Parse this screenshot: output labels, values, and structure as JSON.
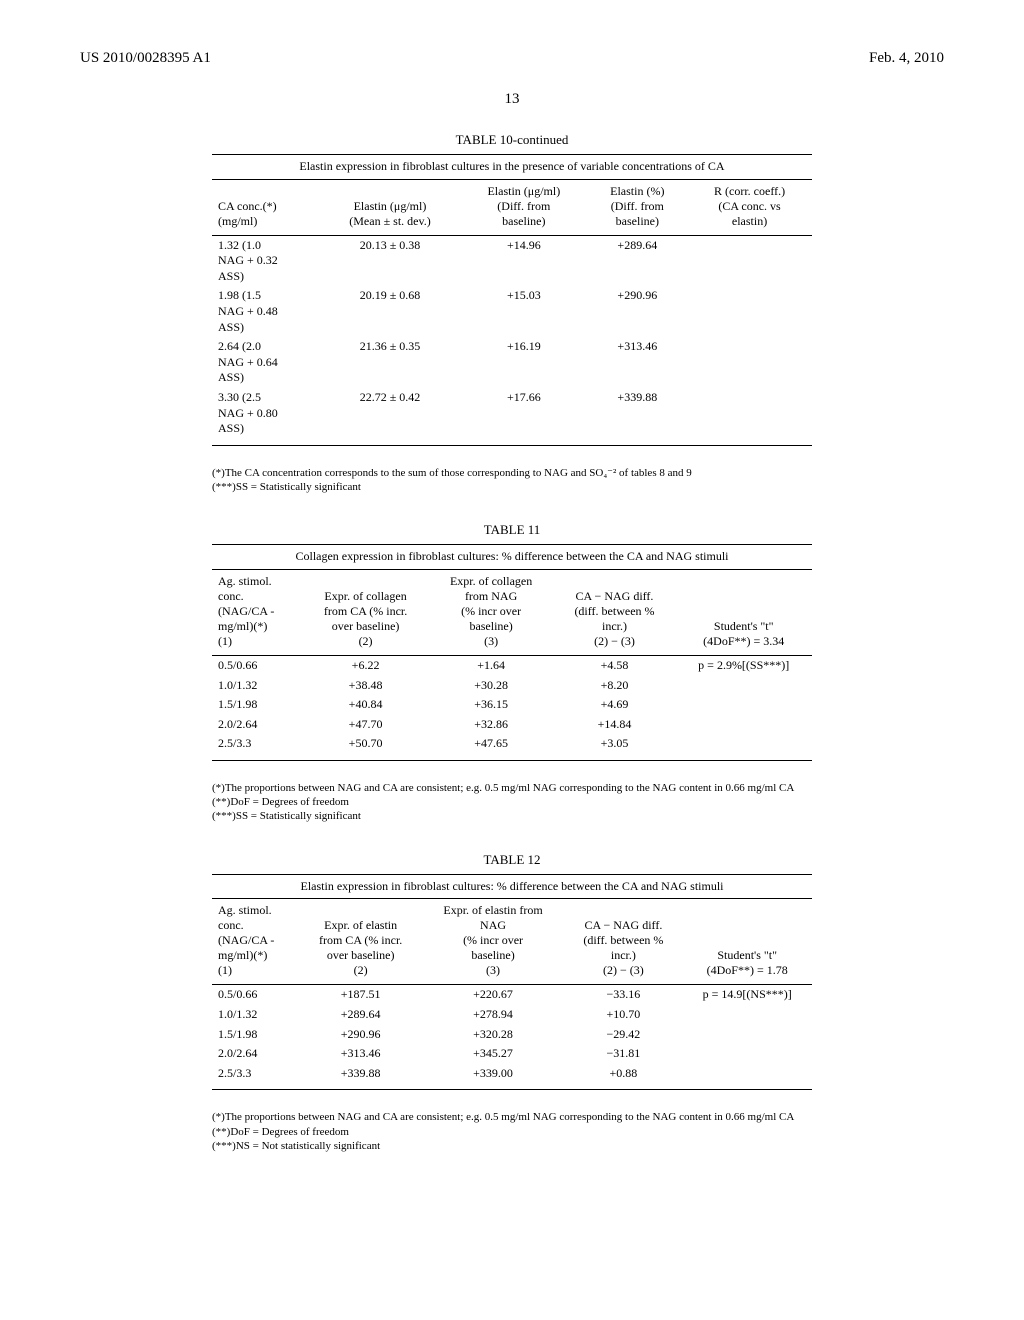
{
  "header": {
    "left": "US 2010/0028395 A1",
    "right": "Feb. 4, 2010",
    "page_number": "13"
  },
  "table10": {
    "title": "TABLE 10-continued",
    "caption": "Elastin expression in fibroblast cultures in the presence of variable concentrations of CA",
    "columns": [
      "CA conc.(*)\n(mg/ml)",
      "Elastin (μg/ml)\n(Mean ± st. dev.)",
      "Elastin (μg/ml)\n(Diff. from\nbaseline)",
      "Elastin (%)\n(Diff. from\nbaseline)",
      "R (corr. coeff.)\n(CA conc. vs\nelastin)"
    ],
    "rows": [
      [
        "1.32 (1.0\nNAG + 0.32\nASS)",
        "20.13 ± 0.38",
        "+14.96",
        "+289.64",
        ""
      ],
      [
        "1.98 (1.5\nNAG + 0.48\nASS)",
        "20.19 ± 0.68",
        "+15.03",
        "+290.96",
        ""
      ],
      [
        "2.64 (2.0\nNAG + 0.64\nASS)",
        "21.36 ± 0.35",
        "+16.19",
        "+313.46",
        ""
      ],
      [
        "3.30 (2.5\nNAG + 0.80\nASS)",
        "22.72 ± 0.42",
        "+17.66",
        "+339.88",
        ""
      ]
    ],
    "footnotes": [
      "(*)The CA concentration corresponds to the sum of those corresponding to NAG and SO₄⁻² of tables 8 and 9",
      "(***)SS = Statistically significant"
    ]
  },
  "table11": {
    "title": "TABLE 11",
    "caption": "Collagen expression in fibroblast cultures: % difference between the CA and NAG stimuli",
    "columns": [
      "Ag. stimol.\nconc.\n(NAG/CA -\nmg/ml)(*)\n(1)",
      "Expr. of collagen\nfrom CA (% incr.\nover baseline)\n(2)",
      "Expr. of collagen\nfrom NAG\n(% incr over\nbaseline)\n(3)",
      "CA − NAG diff.\n(diff. between %\nincr.)\n(2) − (3)",
      "Student's \"t\"\n(4DoF**) = 3.34"
    ],
    "rows": [
      [
        "0.5/0.66",
        "+6.22",
        "+1.64",
        "+4.58",
        "p = 2.9%[(SS***)]"
      ],
      [
        "1.0/1.32",
        "+38.48",
        "+30.28",
        "+8.20",
        ""
      ],
      [
        "1.5/1.98",
        "+40.84",
        "+36.15",
        "+4.69",
        ""
      ],
      [
        "2.0/2.64",
        "+47.70",
        "+32.86",
        "+14.84",
        ""
      ],
      [
        "2.5/3.3",
        "+50.70",
        "+47.65",
        "+3.05",
        ""
      ]
    ],
    "footnotes": [
      "(*)The proportions between NAG and CA are consistent; e.g. 0.5 mg/ml NAG corresponding to the NAG content in 0.66 mg/ml CA",
      "(**)DoF = Degrees of freedom",
      "(***)SS = Statistically significant"
    ]
  },
  "table12": {
    "title": "TABLE 12",
    "caption": "Elastin expression in fibroblast cultures: % difference between the CA and NAG stimuli",
    "columns": [
      "Ag. stimol.\nconc.\n(NAG/CA -\nmg/ml)(*)\n(1)",
      "Expr. of elastin\nfrom CA (% incr.\nover baseline)\n(2)",
      "Expr. of elastin from\nNAG\n(% incr over\nbaseline)\n(3)",
      "CA − NAG diff.\n(diff. between %\nincr.)\n(2) − (3)",
      "Student's \"t\"\n(4DoF**) = 1.78"
    ],
    "rows": [
      [
        "0.5/0.66",
        "+187.51",
        "+220.67",
        "−33.16",
        "p = 14.9[(NS***)]"
      ],
      [
        "1.0/1.32",
        "+289.64",
        "+278.94",
        "+10.70",
        ""
      ],
      [
        "1.5/1.98",
        "+290.96",
        "+320.28",
        "−29.42",
        ""
      ],
      [
        "2.0/2.64",
        "+313.46",
        "+345.27",
        "−31.81",
        ""
      ],
      [
        "2.5/3.3",
        "+339.88",
        "+339.00",
        "+0.88",
        ""
      ]
    ],
    "footnotes": [
      "(*)The proportions between NAG and CA are consistent; e.g. 0.5 mg/ml NAG corresponding to the NAG content in 0.66 mg/ml CA",
      "(**)DoF = Degrees of freedom",
      "(***)NS = Not statistically significant"
    ]
  }
}
